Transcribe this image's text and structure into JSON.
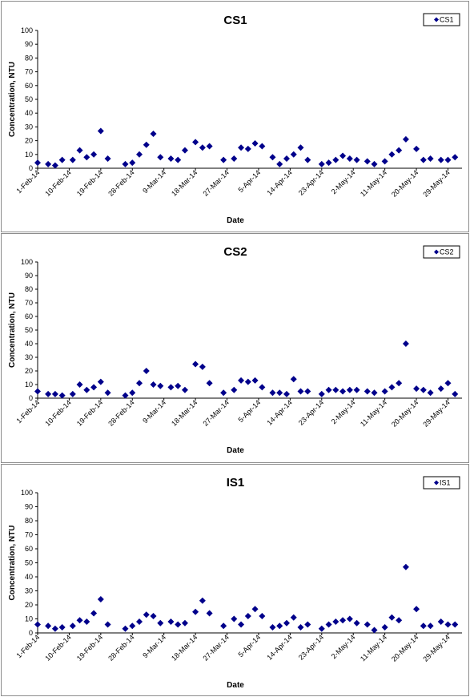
{
  "colors": {
    "marker": "#00008b",
    "axis": "#000000",
    "panel_border": "#8c8c8c"
  },
  "chart_data": [
    {
      "type": "scatter",
      "title": "CS1",
      "xlabel": "Date",
      "ylabel": "Concentration, NTU",
      "legend": {
        "position": "top-right"
      },
      "series": [
        {
          "name": "CS1"
        }
      ],
      "ylim": [
        0,
        100
      ],
      "yticks": [
        "0",
        "10",
        "20",
        "30",
        "40",
        "50",
        "60",
        "70",
        "80",
        "90",
        "100"
      ],
      "grid": false,
      "xlim": [
        "1-Feb-14",
        "2-Jun-14"
      ],
      "xticks": [
        "1-Feb-14",
        "10-Feb-14",
        "19-Feb-14",
        "28-Feb-14",
        "9-Mar-14",
        "18-Mar-14",
        "27-Mar-14",
        "5-Apr-14",
        "14-Apr-14",
        "23-Apr-14",
        "2-May-14",
        "11-May-14",
        "20-May-14",
        "29-May-14"
      ],
      "points": [
        [
          "1-Feb-14",
          4
        ],
        [
          "4-Feb-14",
          3
        ],
        [
          "6-Feb-14",
          2
        ],
        [
          "8-Feb-14",
          6
        ],
        [
          "11-Feb-14",
          6
        ],
        [
          "13-Feb-14",
          13
        ],
        [
          "15-Feb-14",
          8
        ],
        [
          "17-Feb-14",
          10
        ],
        [
          "19-Feb-14",
          27
        ],
        [
          "21-Feb-14",
          7
        ],
        [
          "26-Feb-14",
          3
        ],
        [
          "28-Feb-14",
          4
        ],
        [
          "2-Mar-14",
          10
        ],
        [
          "4-Mar-14",
          17
        ],
        [
          "6-Mar-14",
          25
        ],
        [
          "8-Mar-14",
          8
        ],
        [
          "11-Mar-14",
          7
        ],
        [
          "13-Mar-14",
          6
        ],
        [
          "15-Mar-14",
          13
        ],
        [
          "18-Mar-14",
          19
        ],
        [
          "20-Mar-14",
          15
        ],
        [
          "22-Mar-14",
          16
        ],
        [
          "26-Mar-14",
          6
        ],
        [
          "29-Mar-14",
          7
        ],
        [
          "31-Mar-14",
          15
        ],
        [
          "2-Apr-14",
          14
        ],
        [
          "4-Apr-14",
          18
        ],
        [
          "6-Apr-14",
          16
        ],
        [
          "9-Apr-14",
          8
        ],
        [
          "11-Apr-14",
          3
        ],
        [
          "13-Apr-14",
          7
        ],
        [
          "15-Apr-14",
          10
        ],
        [
          "17-Apr-14",
          15
        ],
        [
          "19-Apr-14",
          6
        ],
        [
          "23-Apr-14",
          3
        ],
        [
          "25-Apr-14",
          4
        ],
        [
          "27-Apr-14",
          6
        ],
        [
          "29-Apr-14",
          9
        ],
        [
          "1-May-14",
          7
        ],
        [
          "3-May-14",
          6
        ],
        [
          "6-May-14",
          5
        ],
        [
          "8-May-14",
          3
        ],
        [
          "11-May-14",
          5
        ],
        [
          "13-May-14",
          10
        ],
        [
          "15-May-14",
          13
        ],
        [
          "17-May-14",
          21
        ],
        [
          "20-May-14",
          14
        ],
        [
          "22-May-14",
          6
        ],
        [
          "24-May-14",
          7
        ],
        [
          "27-May-14",
          6
        ],
        [
          "29-May-14",
          6
        ],
        [
          "31-May-14",
          8
        ]
      ]
    },
    {
      "type": "scatter",
      "title": "CS2",
      "xlabel": "Date",
      "ylabel": "Concentration, NTU",
      "legend": {
        "position": "top-right"
      },
      "series": [
        {
          "name": "CS2"
        }
      ],
      "ylim": [
        0,
        100
      ],
      "yticks": [
        "0",
        "10",
        "20",
        "30",
        "40",
        "50",
        "60",
        "70",
        "80",
        "90",
        "100"
      ],
      "grid": false,
      "xlim": [
        "1-Feb-14",
        "2-Jun-14"
      ],
      "xticks": [
        "1-Feb-14",
        "10-Feb-14",
        "19-Feb-14",
        "28-Feb-14",
        "9-Mar-14",
        "18-Mar-14",
        "27-Mar-14",
        "5-Apr-14",
        "14-Apr-14",
        "23-Apr-14",
        "2-May-14",
        "11-May-14",
        "20-May-14",
        "29-May-14"
      ],
      "points": [
        [
          "1-Feb-14",
          5
        ],
        [
          "4-Feb-14",
          3
        ],
        [
          "6-Feb-14",
          3
        ],
        [
          "8-Feb-14",
          2
        ],
        [
          "11-Feb-14",
          3
        ],
        [
          "13-Feb-14",
          10
        ],
        [
          "15-Feb-14",
          6
        ],
        [
          "17-Feb-14",
          8
        ],
        [
          "19-Feb-14",
          12
        ],
        [
          "21-Feb-14",
          4
        ],
        [
          "26-Feb-14",
          2
        ],
        [
          "28-Feb-14",
          4
        ],
        [
          "2-Mar-14",
          11
        ],
        [
          "4-Mar-14",
          20
        ],
        [
          "6-Mar-14",
          10
        ],
        [
          "8-Mar-14",
          9
        ],
        [
          "11-Mar-14",
          8
        ],
        [
          "13-Mar-14",
          9
        ],
        [
          "15-Mar-14",
          6
        ],
        [
          "18-Mar-14",
          25
        ],
        [
          "20-Mar-14",
          23
        ],
        [
          "22-Mar-14",
          11
        ],
        [
          "26-Mar-14",
          4
        ],
        [
          "29-Mar-14",
          6
        ],
        [
          "31-Mar-14",
          13
        ],
        [
          "2-Apr-14",
          12
        ],
        [
          "4-Apr-14",
          13
        ],
        [
          "6-Apr-14",
          8
        ],
        [
          "9-Apr-14",
          4
        ],
        [
          "11-Apr-14",
          4
        ],
        [
          "13-Apr-14",
          3
        ],
        [
          "15-Apr-14",
          14
        ],
        [
          "17-Apr-14",
          5
        ],
        [
          "19-Apr-14",
          5
        ],
        [
          "23-Apr-14",
          3
        ],
        [
          "25-Apr-14",
          6
        ],
        [
          "27-Apr-14",
          6
        ],
        [
          "29-Apr-14",
          5
        ],
        [
          "1-May-14",
          6
        ],
        [
          "3-May-14",
          6
        ],
        [
          "6-May-14",
          5
        ],
        [
          "8-May-14",
          4
        ],
        [
          "11-May-14",
          5
        ],
        [
          "13-May-14",
          8
        ],
        [
          "15-May-14",
          11
        ],
        [
          "17-May-14",
          40
        ],
        [
          "20-May-14",
          7
        ],
        [
          "22-May-14",
          6
        ],
        [
          "24-May-14",
          4
        ],
        [
          "27-May-14",
          7
        ],
        [
          "29-May-14",
          11
        ],
        [
          "31-May-14",
          3
        ]
      ]
    },
    {
      "type": "scatter",
      "title": "IS1",
      "xlabel": "Date",
      "ylabel": "Concentration, NTU",
      "legend": {
        "position": "top-right"
      },
      "series": [
        {
          "name": "IS1"
        }
      ],
      "ylim": [
        0,
        100
      ],
      "yticks": [
        "0",
        "10",
        "20",
        "30",
        "40",
        "50",
        "60",
        "70",
        "80",
        "90",
        "100"
      ],
      "grid": false,
      "xlim": [
        "1-Feb-14",
        "2-Jun-14"
      ],
      "xticks": [
        "1-Feb-14",
        "10-Feb-14",
        "19-Feb-14",
        "28-Feb-14",
        "9-Mar-14",
        "18-Mar-14",
        "27-Mar-14",
        "5-Apr-14",
        "14-Apr-14",
        "23-Apr-14",
        "2-May-14",
        "11-May-14",
        "20-May-14",
        "29-May-14"
      ],
      "points": [
        [
          "1-Feb-14",
          6
        ],
        [
          "4-Feb-14",
          5
        ],
        [
          "6-Feb-14",
          3
        ],
        [
          "8-Feb-14",
          4
        ],
        [
          "11-Feb-14",
          5
        ],
        [
          "13-Feb-14",
          9
        ],
        [
          "15-Feb-14",
          8
        ],
        [
          "17-Feb-14",
          14
        ],
        [
          "19-Feb-14",
          24
        ],
        [
          "21-Feb-14",
          6
        ],
        [
          "26-Feb-14",
          3
        ],
        [
          "28-Feb-14",
          5
        ],
        [
          "2-Mar-14",
          8
        ],
        [
          "4-Mar-14",
          13
        ],
        [
          "6-Mar-14",
          12
        ],
        [
          "8-Mar-14",
          7
        ],
        [
          "11-Mar-14",
          8
        ],
        [
          "13-Mar-14",
          6
        ],
        [
          "15-Mar-14",
          7
        ],
        [
          "18-Mar-14",
          15
        ],
        [
          "20-Mar-14",
          23
        ],
        [
          "22-Mar-14",
          14
        ],
        [
          "26-Mar-14",
          5
        ],
        [
          "29-Mar-14",
          10
        ],
        [
          "31-Mar-14",
          6
        ],
        [
          "2-Apr-14",
          12
        ],
        [
          "4-Apr-14",
          17
        ],
        [
          "6-Apr-14",
          12
        ],
        [
          "9-Apr-14",
          4
        ],
        [
          "11-Apr-14",
          5
        ],
        [
          "13-Apr-14",
          7
        ],
        [
          "15-Apr-14",
          11
        ],
        [
          "17-Apr-14",
          4
        ],
        [
          "19-Apr-14",
          6
        ],
        [
          "23-Apr-14",
          3
        ],
        [
          "25-Apr-14",
          6
        ],
        [
          "27-Apr-14",
          8
        ],
        [
          "29-Apr-14",
          9
        ],
        [
          "1-May-14",
          10
        ],
        [
          "3-May-14",
          7
        ],
        [
          "6-May-14",
          6
        ],
        [
          "8-May-14",
          2
        ],
        [
          "11-May-14",
          4
        ],
        [
          "13-May-14",
          11
        ],
        [
          "15-May-14",
          9
        ],
        [
          "17-May-14",
          47
        ],
        [
          "20-May-14",
          17
        ],
        [
          "22-May-14",
          5
        ],
        [
          "24-May-14",
          5
        ],
        [
          "27-May-14",
          8
        ],
        [
          "29-May-14",
          6
        ],
        [
          "31-May-14",
          6
        ]
      ]
    }
  ]
}
